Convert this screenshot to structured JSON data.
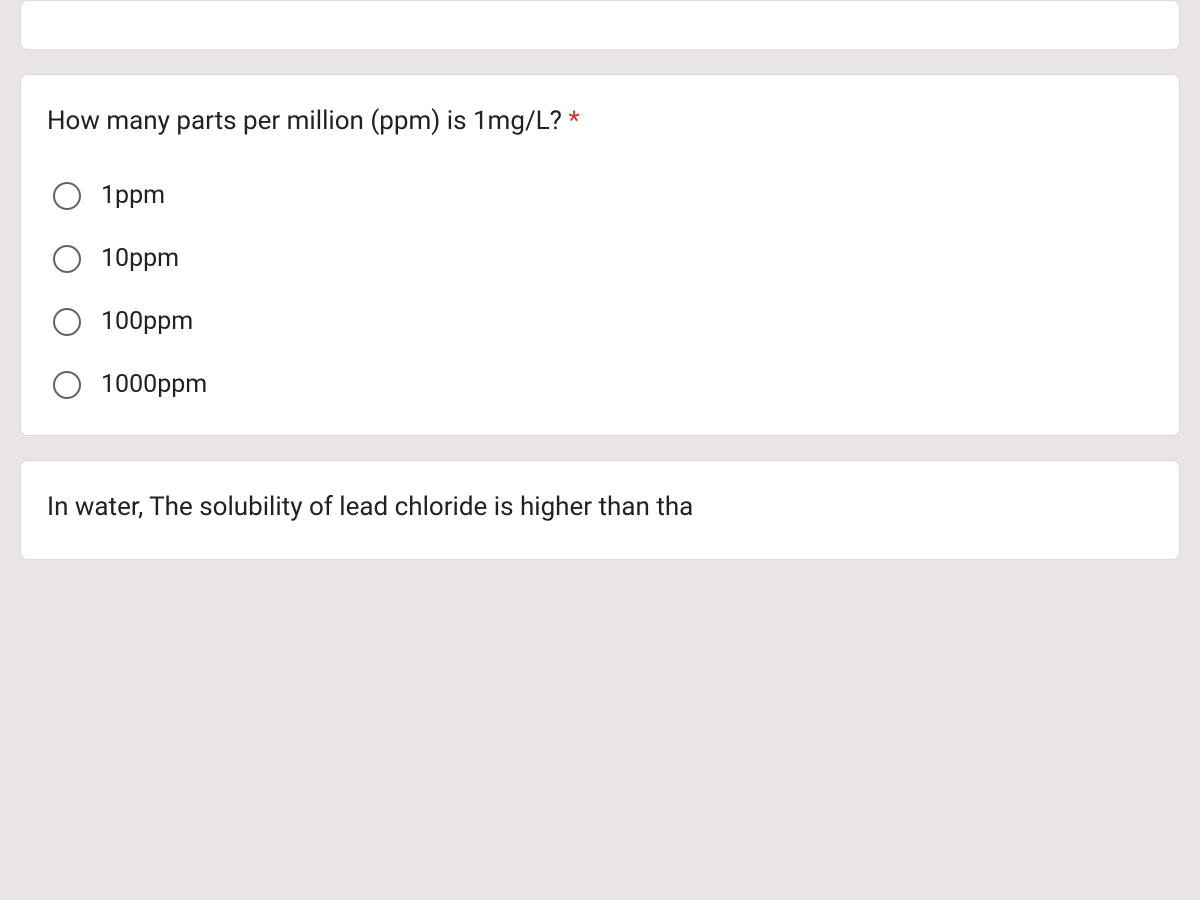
{
  "question1": {
    "text": "How many parts per million (ppm) is 1mg/L?",
    "required_marker": " *",
    "options": [
      {
        "label": "1ppm"
      },
      {
        "label": "10ppm"
      },
      {
        "label": "100ppm"
      },
      {
        "label": "1000ppm"
      }
    ]
  },
  "question2": {
    "text": "In water, The solubility of lead chloride is higher than tha"
  },
  "colors": {
    "background": "#e8e4e8",
    "card_bg": "#ffffff",
    "border": "#dadce0",
    "text": "#202124",
    "radio_border": "#5f6368",
    "required": "#d93025"
  }
}
